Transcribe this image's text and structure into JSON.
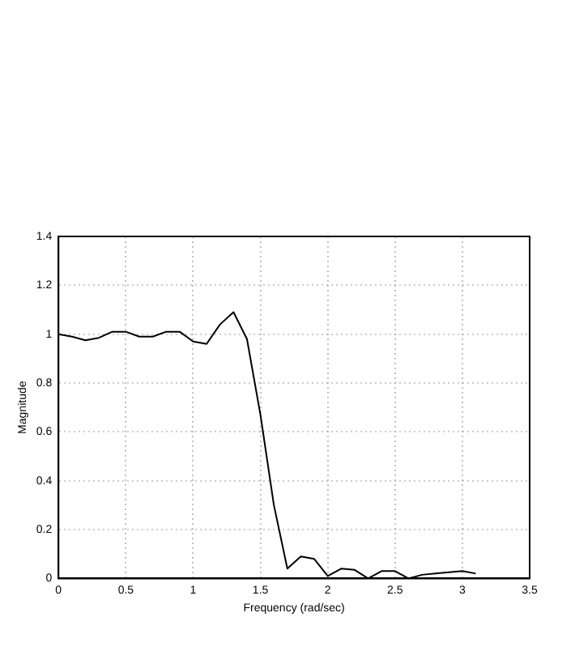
{
  "chart_data": {
    "type": "line",
    "xlabel": "Frequency (rad/sec)",
    "ylabel": "Magnitude",
    "x": [
      0,
      0.1,
      0.2,
      0.3,
      0.4,
      0.5,
      0.6,
      0.7,
      0.8,
      0.9,
      1.0,
      1.1,
      1.2,
      1.3,
      1.4,
      1.5,
      1.6,
      1.7,
      1.8,
      1.9,
      2.0,
      2.1,
      2.2,
      2.3,
      2.4,
      2.5,
      2.6,
      2.7,
      2.8,
      2.9,
      3.0,
      3.1
    ],
    "series": [
      {
        "color": "#000000",
        "values": [
          1.0,
          0.99,
          0.975,
          0.985,
          1.01,
          1.01,
          0.99,
          0.99,
          1.01,
          1.01,
          0.97,
          0.96,
          1.04,
          1.09,
          0.98,
          0.67,
          0.3,
          0.04,
          0.09,
          0.08,
          0.01,
          0.04,
          0.035,
          0.0,
          0.03,
          0.03,
          0.0,
          0.015,
          0.02,
          0.025,
          0.03,
          0.02
        ]
      }
    ],
    "xlim": [
      0,
      3.5
    ],
    "xticks": [
      0,
      0.5,
      1,
      1.5,
      2,
      2.5,
      3,
      3.5
    ],
    "ylim": [
      0,
      1.4
    ],
    "yticks": [
      0,
      0.2,
      0.4,
      0.6,
      0.8,
      1,
      1.2,
      1.4
    ],
    "grid": true,
    "legend": false,
    "marker": "none",
    "line_style": "solid"
  }
}
